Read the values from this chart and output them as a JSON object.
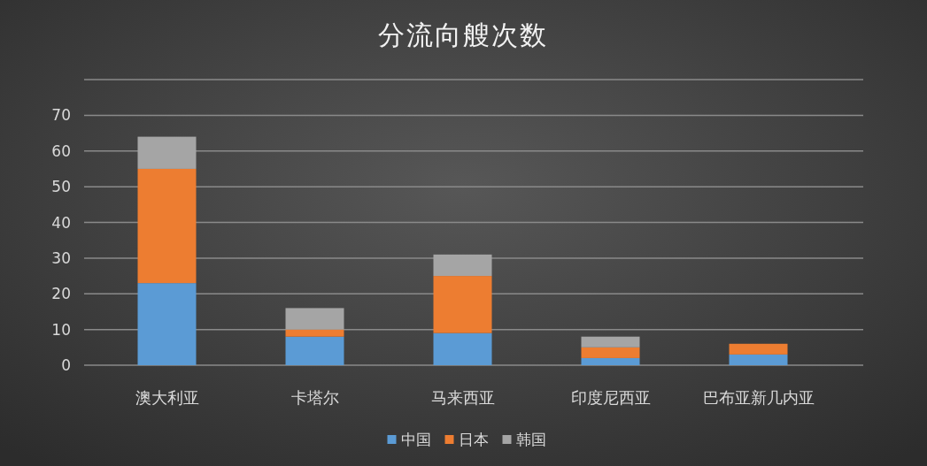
{
  "chart_data": {
    "type": "bar",
    "title": "分流向艘次数",
    "categories": [
      "澳大利亚",
      "卡塔尔",
      "马来西亚",
      "印度尼西亚",
      "巴布亚新几内亚"
    ],
    "series": [
      {
        "name": "中国",
        "color": "#5b9bd5",
        "values": [
          23,
          8,
          9,
          2,
          3
        ]
      },
      {
        "name": "日本",
        "color": "#ed7d31",
        "values": [
          32,
          2,
          16,
          3,
          3
        ]
      },
      {
        "name": "韩国",
        "color": "#a5a5a5",
        "values": [
          9,
          6,
          6,
          3,
          0
        ]
      }
    ],
    "stacked": true,
    "ylim": [
      0,
      80
    ],
    "yticks": [
      0,
      10,
      20,
      30,
      40,
      50,
      60,
      70,
      {
        "value": 80,
        "label": null
      }
    ],
    "grid": "y",
    "legend": "bottom"
  }
}
